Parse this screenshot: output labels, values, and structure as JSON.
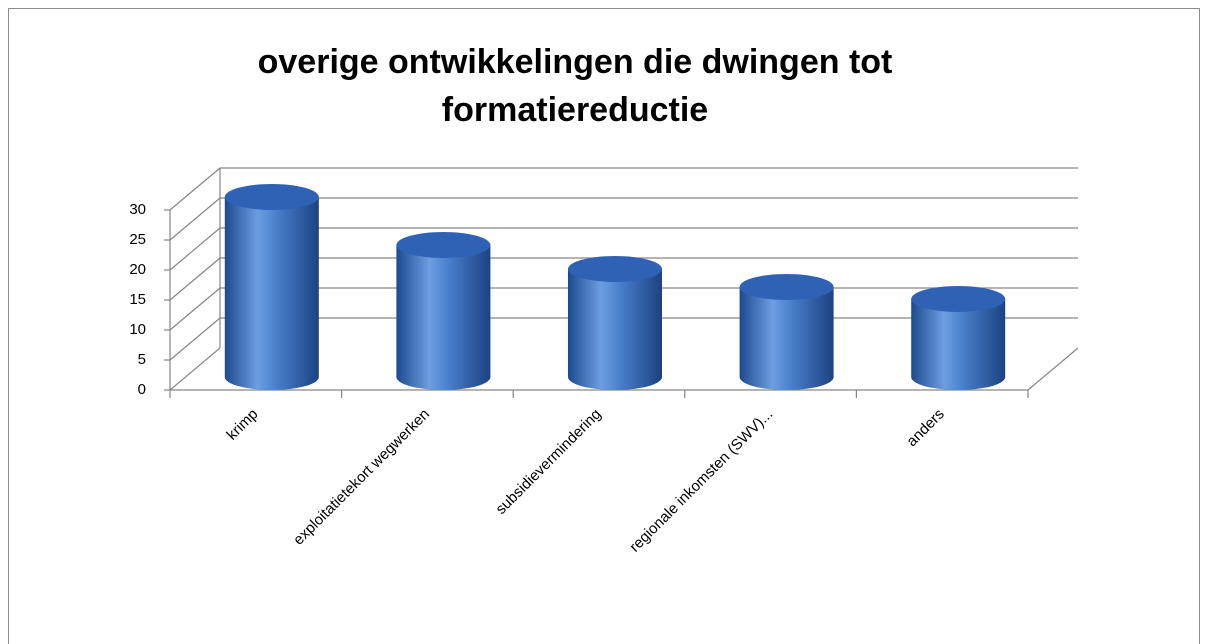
{
  "chart_data": {
    "type": "bar3d",
    "title": "overige ontwikkelingen die dwingen tot formatiereductie",
    "categories": [
      "krimp",
      "exploitatietekort wegwerken",
      "subsidievermindering",
      "regionale inkomsten (SWV)...",
      "anders"
    ],
    "values": [
      30,
      22,
      18,
      15,
      13
    ],
    "color": "#3a6fc0",
    "ylim": [
      0,
      30
    ],
    "yticks": [
      0,
      5,
      10,
      15,
      20,
      25,
      30
    ],
    "grid": true
  }
}
